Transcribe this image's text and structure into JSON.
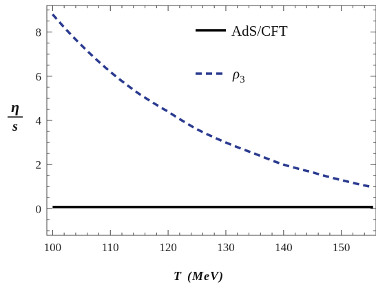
{
  "chart_data": {
    "type": "line",
    "title": "",
    "xlabel": "T (MeV)",
    "xlabel_parts": {
      "var": "T",
      "unit": "(MeV)"
    },
    "ylabel": "η/s",
    "ylabel_parts": {
      "num": "η",
      "den": "s"
    },
    "xlim": [
      99,
      156
    ],
    "ylim": [
      -1.2,
      9.2
    ],
    "xticks": [
      100,
      110,
      120,
      130,
      140,
      150
    ],
    "yticks": [
      0,
      2,
      4,
      6,
      8
    ],
    "grid": false,
    "legend_position": "top-right",
    "series": [
      {
        "name": "AdS/CFT",
        "legend_label": "AdS/CFT",
        "style": "solid",
        "color": "#000000",
        "x": [
          100,
          155.5
        ],
        "y": [
          0.08,
          0.08
        ]
      },
      {
        "name": "ρ3",
        "legend_label": {
          "base": "ρ",
          "sub": "3"
        },
        "style": "dashed",
        "color": "#2a3a8f",
        "x": [
          100,
          105,
          110,
          115,
          120,
          125,
          130,
          135,
          140,
          145,
          150,
          155.5
        ],
        "y": [
          8.8,
          7.4,
          6.2,
          5.2,
          4.4,
          3.6,
          3.0,
          2.5,
          2.0,
          1.65,
          1.3,
          0.98
        ]
      }
    ]
  }
}
